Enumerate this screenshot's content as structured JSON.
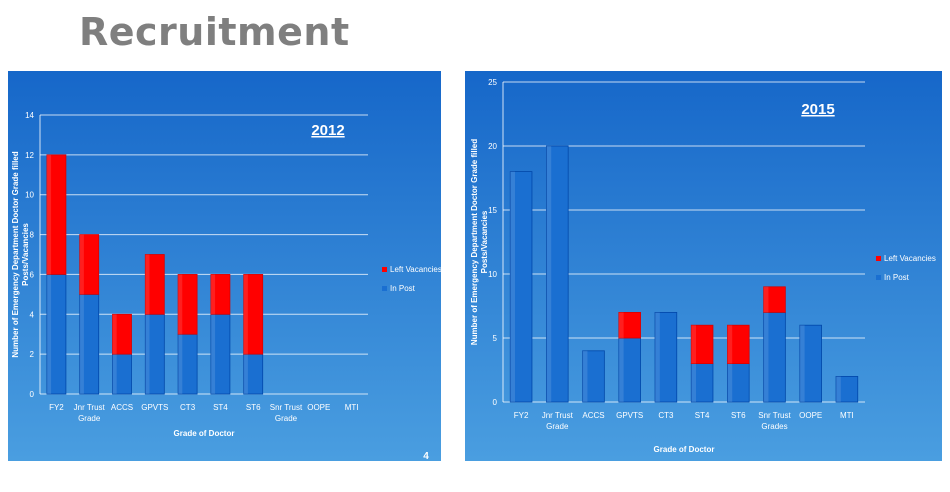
{
  "slide": {
    "title": "Recruitment"
  },
  "colors": {
    "in_post": "#1a6fd1",
    "left_vacancies": "#ff0000",
    "panel_top": "#1667c9",
    "panel_bottom": "#4a9ee0",
    "text": "#ffffff"
  },
  "chart_data": [
    {
      "type": "bar",
      "stacked": true,
      "title": "2012",
      "page_number": "4",
      "xlabel": "Grade of Doctor",
      "ylabel": "Number of Emergency Department Doctor Grade filled Posts/Vacancies",
      "ylim": [
        0,
        14
      ],
      "yticks": [
        0,
        2,
        4,
        6,
        8,
        10,
        12,
        14
      ],
      "grid": true,
      "legend_position": "right",
      "categories": [
        "FY2",
        "Jnr Trust Grade",
        "ACCS",
        "GPVTS",
        "CT3",
        "ST4",
        "ST6",
        "Snr Trust Grade",
        "OOPE",
        "MTI"
      ],
      "series": [
        {
          "name": "In Post",
          "color": "#1a6fd1",
          "values": [
            6,
            5,
            2,
            4,
            3,
            4,
            2,
            0,
            0,
            0
          ]
        },
        {
          "name": "Left Vacancies",
          "color": "#ff0000",
          "values": [
            6,
            3,
            2,
            3,
            3,
            2,
            4,
            0,
            0,
            0
          ]
        }
      ]
    },
    {
      "type": "bar",
      "stacked": true,
      "title": "2015",
      "page_number": "",
      "xlabel": "Grade of Doctor",
      "ylabel": "Number of Emergency Department Doctor Grade filled Posts/Vacancies",
      "ylim": [
        0,
        25
      ],
      "yticks": [
        0,
        5,
        10,
        15,
        20,
        25
      ],
      "grid": true,
      "legend_position": "right",
      "categories": [
        "FY2",
        "Jnr Trust Grade",
        "ACCS",
        "GPVTS",
        "CT3",
        "ST4",
        "ST6",
        "Snr Trust Grades",
        "OOPE",
        "MTI"
      ],
      "series": [
        {
          "name": "In Post",
          "color": "#1a6fd1",
          "values": [
            18,
            20,
            4,
            5,
            7,
            3,
            3,
            7,
            6,
            2
          ]
        },
        {
          "name": "Left Vacancies",
          "color": "#ff0000",
          "values": [
            0,
            0,
            0,
            2,
            0,
            3,
            3,
            2,
            0,
            0
          ]
        }
      ]
    }
  ]
}
